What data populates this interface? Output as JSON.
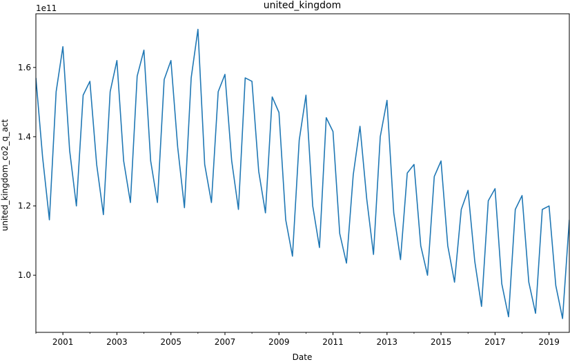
{
  "chart_data": {
    "type": "line",
    "title": "united_kingdom",
    "xlabel": "Date",
    "ylabel": "united_kingdom_co2_q_act",
    "y_offset_label": "1e11",
    "y_scale": 100000000000.0,
    "xlim": [
      "2000-01",
      "2019-10"
    ],
    "ylim": [
      0.835,
      1.755
    ],
    "grid": false,
    "x_ticks": [
      "2001",
      "2003",
      "2005",
      "2007",
      "2009",
      "2011",
      "2013",
      "2015",
      "2017",
      "2019"
    ],
    "y_ticks": [
      "1.0",
      "1.2",
      "1.4",
      "1.6"
    ],
    "y_tick_values": [
      1.0,
      1.2,
      1.4,
      1.6
    ],
    "line_color": "#1f77b4",
    "series": [
      {
        "x": [
          "2000-01",
          "2000-04",
          "2000-07",
          "2000-10",
          "2001-01",
          "2001-04",
          "2001-07",
          "2001-10",
          "2002-01",
          "2002-04",
          "2002-07",
          "2002-10",
          "2003-01",
          "2003-04",
          "2003-07",
          "2003-10",
          "2004-01",
          "2004-04",
          "2004-07",
          "2004-10",
          "2005-01",
          "2005-04",
          "2005-07",
          "2005-10",
          "2006-01",
          "2006-04",
          "2006-07",
          "2006-10",
          "2007-01",
          "2007-04",
          "2007-07",
          "2007-10",
          "2008-01",
          "2008-04",
          "2008-07",
          "2008-10",
          "2009-01",
          "2009-04",
          "2009-07",
          "2009-10",
          "2010-01",
          "2010-04",
          "2010-07",
          "2010-10",
          "2011-01",
          "2011-04",
          "2011-07",
          "2011-10",
          "2012-01",
          "2012-04",
          "2012-07",
          "2012-10",
          "2013-01",
          "2013-04",
          "2013-07",
          "2013-10",
          "2014-01",
          "2014-04",
          "2014-07",
          "2014-10",
          "2015-01",
          "2015-04",
          "2015-07",
          "2015-10",
          "2016-01",
          "2016-04",
          "2016-07",
          "2016-10",
          "2017-01",
          "2017-04",
          "2017-07",
          "2017-10",
          "2018-01",
          "2018-04",
          "2018-07",
          "2018-10",
          "2019-01",
          "2019-04",
          "2019-07",
          "2019-10"
        ],
        "values": [
          1.57,
          1.34,
          1.16,
          1.53,
          1.66,
          1.36,
          1.2,
          1.52,
          1.56,
          1.32,
          1.175,
          1.53,
          1.62,
          1.33,
          1.21,
          1.575,
          1.65,
          1.33,
          1.21,
          1.565,
          1.62,
          1.37,
          1.195,
          1.57,
          1.71,
          1.32,
          1.21,
          1.53,
          1.58,
          1.33,
          1.19,
          1.57,
          1.56,
          1.3,
          1.18,
          1.515,
          1.47,
          1.16,
          1.055,
          1.39,
          1.52,
          1.2,
          1.08,
          1.455,
          1.415,
          1.12,
          1.035,
          1.29,
          1.43,
          1.22,
          1.06,
          1.4,
          1.505,
          1.18,
          1.045,
          1.295,
          1.32,
          1.085,
          1.0,
          1.285,
          1.33,
          1.085,
          0.98,
          1.19,
          1.245,
          1.04,
          0.91,
          1.215,
          1.25,
          0.975,
          0.88,
          1.19,
          1.23,
          0.98,
          0.89,
          1.19,
          1.2,
          0.97,
          0.875,
          1.16
        ]
      }
    ]
  }
}
